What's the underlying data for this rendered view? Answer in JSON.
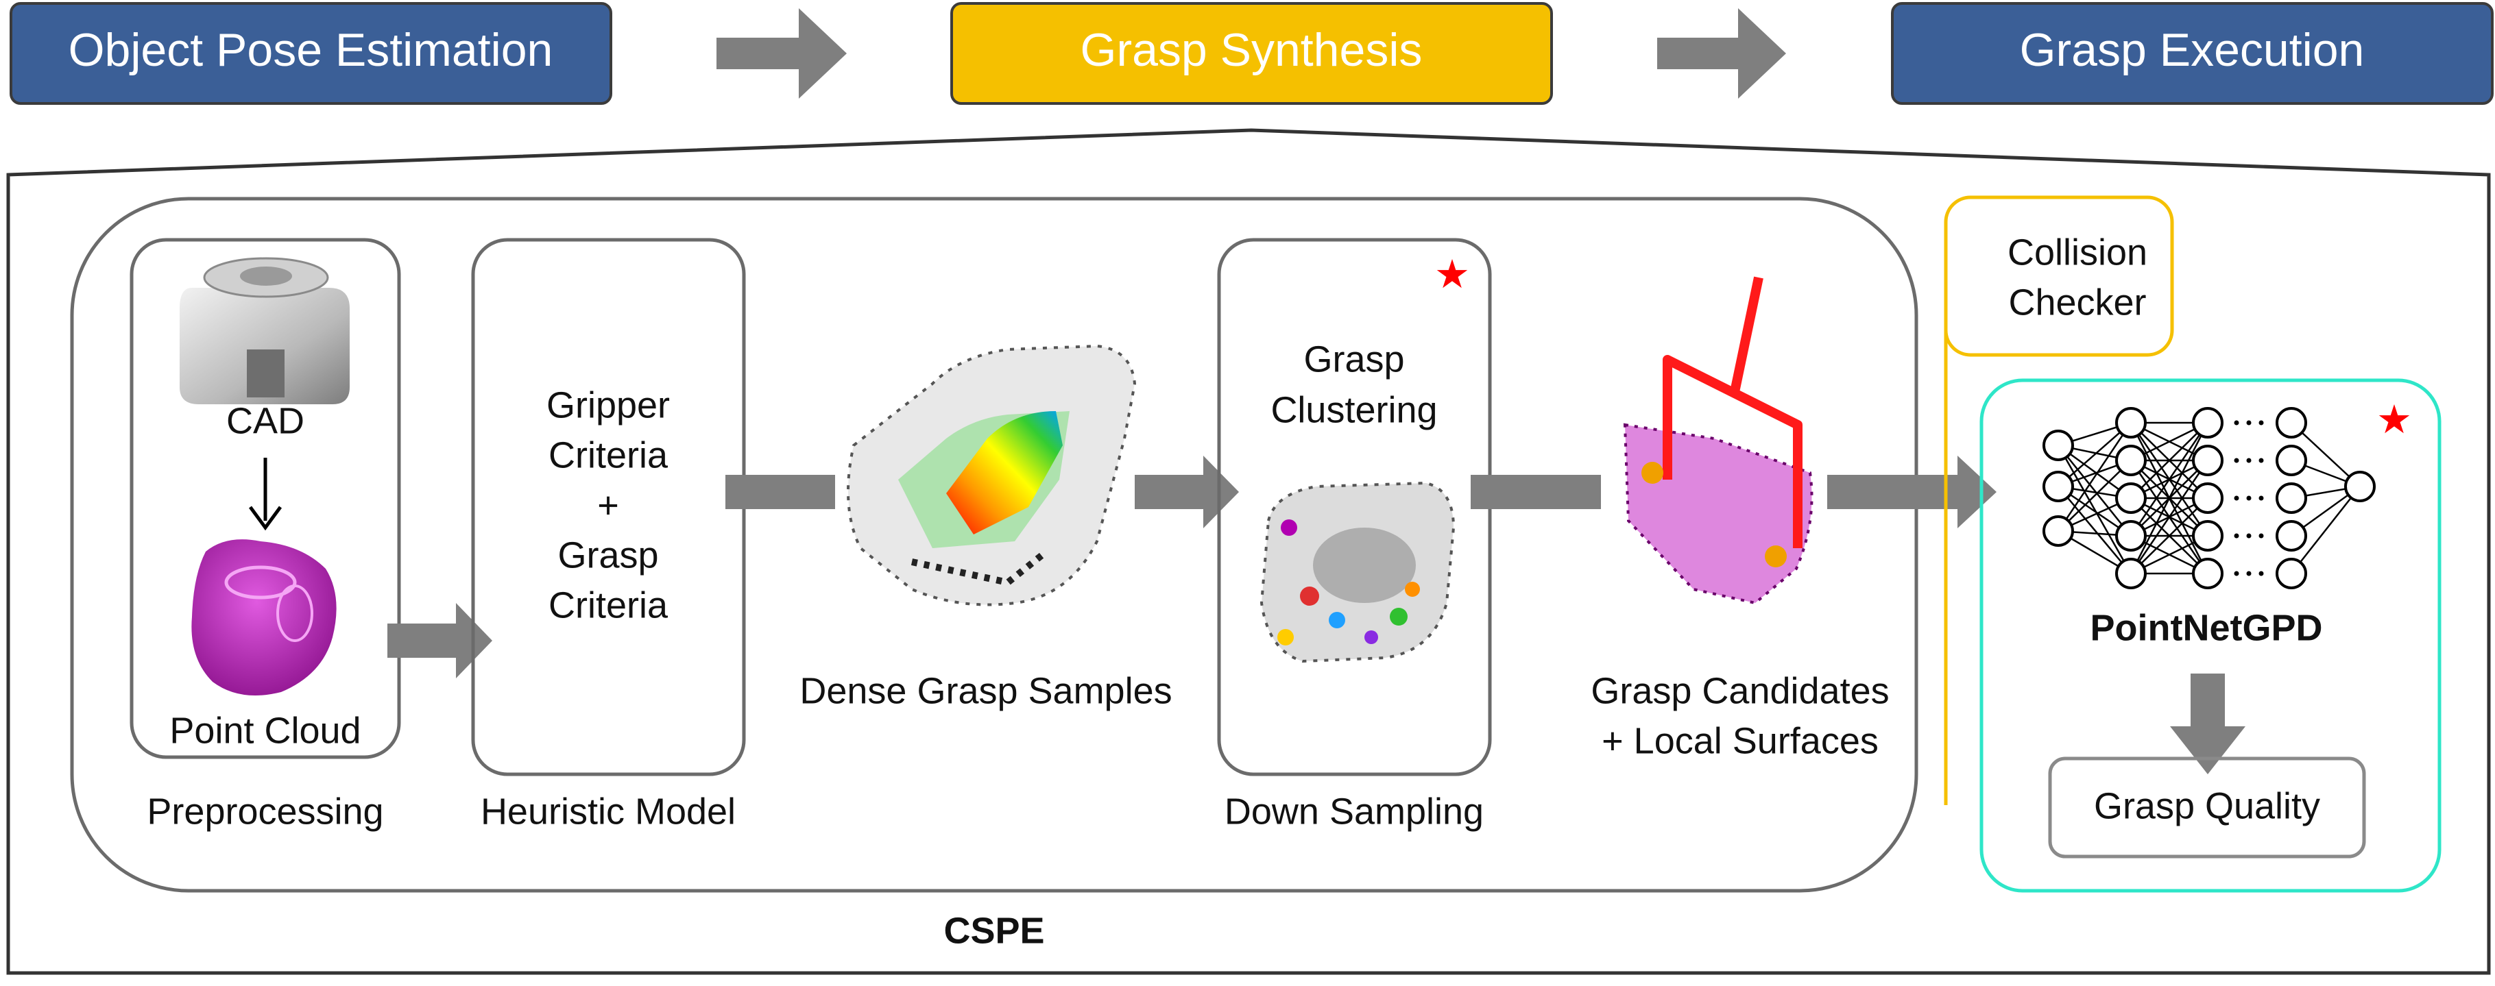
{
  "pipeline": {
    "stages": [
      {
        "label": "Object Pose Estimation",
        "color": "#3b5f97"
      },
      {
        "label": "Grasp Synthesis",
        "color": "#f5c000"
      },
      {
        "label": "Grasp Execution",
        "color": "#3b5f97"
      }
    ]
  },
  "cspe": {
    "title": "CSPE",
    "preprocessing": {
      "cad_label": "CAD",
      "point_cloud_label": "Point Cloud",
      "caption": "Preprocessing"
    },
    "heuristic": {
      "lines": [
        "Gripper",
        "Criteria",
        "+",
        "Grasp",
        "Criteria"
      ],
      "caption": "Heuristic Model"
    },
    "dense_samples_label": "Dense Grasp Samples",
    "downsampling": {
      "lines": [
        "Grasp",
        "Clustering"
      ],
      "caption": "Down Sampling"
    },
    "candidates_label": [
      "Grasp Candidates",
      "+ Local Surfaces"
    ]
  },
  "collision_checker": {
    "lines": [
      "Collision",
      "Checker"
    ],
    "color": "#f5c000"
  },
  "pointnetgpd": {
    "title": "PointNetGPD",
    "output": "Grasp Quality",
    "border_color": "#2ee6c8"
  },
  "icons": {
    "star": "red-star-icon",
    "arrow": "gray-block-arrow-icon",
    "network": "neural-network-icon"
  },
  "colors": {
    "arrow": "#7f7f7f",
    "star": "#ff0000",
    "point_cloud": "#c21bc2",
    "gripper": "#ff1a1a"
  }
}
